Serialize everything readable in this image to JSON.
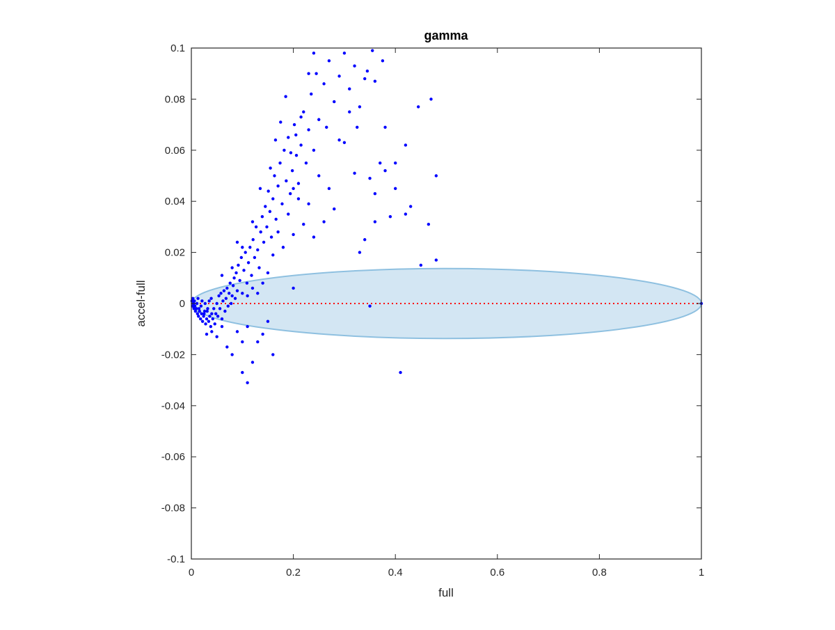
{
  "chart_data": {
    "type": "scatter",
    "title": "gamma",
    "xlabel": "full",
    "ylabel": "accel-full",
    "xlim": [
      0,
      1
    ],
    "ylim": [
      -0.1,
      0.1
    ],
    "x_ticks": [
      0,
      0.2,
      0.4,
      0.6,
      0.8,
      1
    ],
    "x_tick_labels": [
      "0",
      "0.2",
      "0.4",
      "0.6",
      "0.8",
      "1"
    ],
    "y_ticks": [
      -0.1,
      -0.08,
      -0.06,
      -0.04,
      -0.02,
      0,
      0.02,
      0.04,
      0.06,
      0.08,
      0.1
    ],
    "y_tick_labels": [
      "-0.1",
      "-0.08",
      "-0.06",
      "-0.04",
      "-0.02",
      "0",
      "0.02",
      "0.04",
      "0.06",
      "0.08",
      "0.1"
    ],
    "grid": false,
    "box": true,
    "colors": {
      "points": "#0000ff",
      "zero_line": "#ff0000",
      "ellipse_fill": "#d3e6f3",
      "ellipse_edge": "#8ec0e0",
      "axes": "#262626"
    },
    "reference_line": {
      "y": 0,
      "style": "dotted"
    },
    "ellipse": {
      "center_x": 0.5,
      "center_y": 0,
      "radius_x": 0.5,
      "radius_y": 0.0137
    },
    "series": [
      {
        "points": [
          [
            0.001,
            0.001
          ],
          [
            0.002,
            -0.001
          ],
          [
            0.003,
            0.002
          ],
          [
            0.004,
            0.0
          ],
          [
            0.002,
            0.001
          ],
          [
            0.005,
            -0.002
          ],
          [
            0.006,
            0.001
          ],
          [
            0.003,
            -0.001
          ],
          [
            0.008,
            -0.003
          ],
          [
            0.01,
            -0.002
          ],
          [
            0.012,
            -0.004
          ],
          [
            0.007,
            -0.001
          ],
          [
            0.011,
            0.0
          ],
          [
            0.014,
            -0.005
          ],
          [
            0.016,
            -0.003
          ],
          [
            0.013,
            0.002
          ],
          [
            0.018,
            -0.006
          ],
          [
            0.02,
            -0.004
          ],
          [
            0.015,
            -0.002
          ],
          [
            0.022,
            -0.007
          ],
          [
            0.024,
            -0.005
          ],
          [
            0.019,
            -0.001
          ],
          [
            0.026,
            -0.003
          ],
          [
            0.021,
            0.001
          ],
          [
            0.028,
            -0.008
          ],
          [
            0.03,
            -0.006
          ],
          [
            0.025,
            -0.004
          ],
          [
            0.032,
            -0.002
          ],
          [
            0.027,
            0.0
          ],
          [
            0.034,
            -0.007
          ],
          [
            0.036,
            -0.005
          ],
          [
            0.031,
            -0.003
          ],
          [
            0.038,
            -0.009
          ],
          [
            0.04,
            -0.004
          ],
          [
            0.035,
            0.001
          ],
          [
            0.042,
            -0.006
          ],
          [
            0.044,
            -0.002
          ],
          [
            0.039,
            0.002
          ],
          [
            0.046,
            -0.008
          ],
          [
            0.048,
            -0.004
          ],
          [
            0.05,
            0.0
          ],
          [
            0.052,
            -0.005
          ],
          [
            0.054,
            0.003
          ],
          [
            0.056,
            -0.002
          ],
          [
            0.058,
            0.004
          ],
          [
            0.06,
            -0.006
          ],
          [
            0.062,
            0.001
          ],
          [
            0.064,
            0.005
          ],
          [
            0.066,
            -0.003
          ],
          [
            0.068,
            0.002
          ],
          [
            0.07,
            0.006
          ],
          [
            0.072,
            -0.001
          ],
          [
            0.074,
            0.004
          ],
          [
            0.076,
            0.008
          ],
          [
            0.078,
            0.0
          ],
          [
            0.08,
            0.003
          ],
          [
            0.082,
            0.007
          ],
          [
            0.084,
            0.01
          ],
          [
            0.086,
            0.002
          ],
          [
            0.088,
            0.012
          ],
          [
            0.09,
            0.005
          ],
          [
            0.092,
            0.015
          ],
          [
            0.095,
            0.009
          ],
          [
            0.098,
            0.018
          ],
          [
            0.1,
            0.004
          ],
          [
            0.103,
            0.013
          ],
          [
            0.106,
            0.02
          ],
          [
            0.109,
            0.008
          ],
          [
            0.112,
            0.016
          ],
          [
            0.115,
            0.022
          ],
          [
            0.118,
            0.011
          ],
          [
            0.121,
            0.025
          ],
          [
            0.124,
            0.018
          ],
          [
            0.127,
            0.03
          ],
          [
            0.13,
            0.021
          ],
          [
            0.133,
            0.014
          ],
          [
            0.136,
            0.028
          ],
          [
            0.139,
            0.034
          ],
          [
            0.142,
            0.024
          ],
          [
            0.145,
            0.038
          ],
          [
            0.148,
            0.03
          ],
          [
            0.151,
            0.044
          ],
          [
            0.154,
            0.036
          ],
          [
            0.157,
            0.026
          ],
          [
            0.16,
            0.041
          ],
          [
            0.163,
            0.05
          ],
          [
            0.166,
            0.033
          ],
          [
            0.17,
            0.046
          ],
          [
            0.174,
            0.055
          ],
          [
            0.178,
            0.039
          ],
          [
            0.182,
            0.06
          ],
          [
            0.186,
            0.048
          ],
          [
            0.19,
            0.065
          ],
          [
            0.194,
            0.043
          ],
          [
            0.198,
            0.052
          ],
          [
            0.202,
            0.07
          ],
          [
            0.206,
            0.058
          ],
          [
            0.21,
            0.047
          ],
          [
            0.215,
            0.062
          ],
          [
            0.22,
            0.075
          ],
          [
            0.225,
            0.055
          ],
          [
            0.23,
            0.068
          ],
          [
            0.235,
            0.082
          ],
          [
            0.24,
            0.06
          ],
          [
            0.245,
            0.09
          ],
          [
            0.25,
            0.072
          ],
          [
            0.26,
            0.086
          ],
          [
            0.27,
            0.095
          ],
          [
            0.28,
            0.079
          ],
          [
            0.29,
            0.089
          ],
          [
            0.3,
            0.098
          ],
          [
            0.31,
            0.084
          ],
          [
            0.32,
            0.093
          ],
          [
            0.33,
            0.077
          ],
          [
            0.34,
            0.088
          ],
          [
            0.355,
            0.099
          ],
          [
            0.36,
            0.087
          ],
          [
            0.375,
            0.095
          ],
          [
            0.38,
            0.069
          ],
          [
            0.4,
            0.055
          ],
          [
            0.42,
            0.062
          ],
          [
            0.445,
            0.077
          ],
          [
            0.47,
            0.08
          ],
          [
            0.48,
            0.05
          ],
          [
            0.465,
            0.031
          ],
          [
            0.42,
            0.035
          ],
          [
            0.39,
            0.034
          ],
          [
            0.36,
            0.032
          ],
          [
            0.34,
            0.025
          ],
          [
            0.33,
            0.02
          ],
          [
            0.32,
            0.051
          ],
          [
            0.3,
            0.063
          ],
          [
            0.28,
            0.037
          ],
          [
            0.27,
            0.045
          ],
          [
            0.26,
            0.032
          ],
          [
            0.25,
            0.05
          ],
          [
            0.24,
            0.026
          ],
          [
            0.23,
            0.039
          ],
          [
            0.22,
            0.031
          ],
          [
            0.21,
            0.041
          ],
          [
            0.2,
            0.027
          ],
          [
            0.19,
            0.035
          ],
          [
            0.18,
            0.022
          ],
          [
            0.17,
            0.028
          ],
          [
            0.16,
            0.019
          ],
          [
            0.15,
            0.012
          ],
          [
            0.14,
            0.008
          ],
          [
            0.13,
            0.004
          ],
          [
            0.12,
            0.006
          ],
          [
            0.11,
            0.003
          ],
          [
            0.2,
            0.006
          ],
          [
            0.35,
            -0.001
          ],
          [
            0.45,
            0.015
          ],
          [
            0.48,
            0.017
          ],
          [
            0.41,
            -0.027
          ],
          [
            0.16,
            -0.02
          ],
          [
            0.11,
            -0.031
          ],
          [
            0.1,
            -0.027
          ],
          [
            0.12,
            -0.023
          ],
          [
            0.08,
            -0.02
          ],
          [
            0.07,
            -0.017
          ],
          [
            0.05,
            -0.013
          ],
          [
            0.04,
            -0.011
          ],
          [
            0.03,
            -0.012
          ],
          [
            0.06,
            -0.009
          ],
          [
            0.09,
            -0.011
          ],
          [
            0.1,
            -0.015
          ],
          [
            0.13,
            -0.015
          ],
          [
            0.14,
            -0.012
          ],
          [
            0.11,
            -0.009
          ],
          [
            0.15,
            -0.007
          ],
          [
            0.06,
            0.011
          ],
          [
            0.08,
            0.014
          ],
          [
            0.09,
            0.024
          ],
          [
            0.1,
            0.022
          ],
          [
            0.12,
            0.032
          ],
          [
            0.135,
            0.045
          ],
          [
            0.155,
            0.053
          ],
          [
            0.165,
            0.064
          ],
          [
            0.175,
            0.071
          ],
          [
            0.185,
            0.081
          ],
          [
            0.195,
            0.059
          ],
          [
            0.2,
            0.045
          ],
          [
            0.205,
            0.066
          ],
          [
            0.215,
            0.073
          ],
          [
            0.23,
            0.09
          ],
          [
            0.24,
            0.098
          ],
          [
            0.265,
            0.069
          ],
          [
            0.29,
            0.064
          ],
          [
            0.31,
            0.075
          ],
          [
            0.325,
            0.069
          ],
          [
            0.345,
            0.091
          ],
          [
            0.35,
            0.049
          ],
          [
            0.36,
            0.043
          ],
          [
            0.37,
            0.055
          ],
          [
            0.38,
            0.052
          ],
          [
            0.4,
            0.045
          ],
          [
            0.43,
            0.038
          ],
          [
            0.005,
            0.0
          ],
          [
            1.0,
            0.0
          ]
        ]
      }
    ]
  }
}
